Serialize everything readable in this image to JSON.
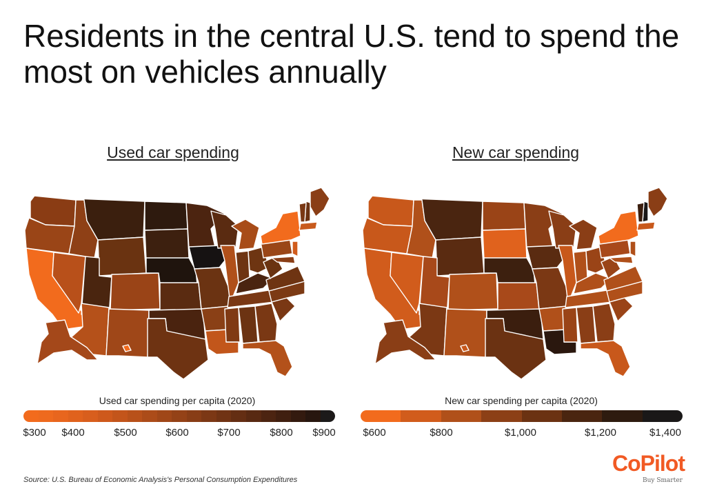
{
  "title": "Residents in the central U.S. tend to spend the most on vehicles annually",
  "maps": {
    "used": {
      "title": "Used car spending",
      "legend_title": "Used car spending per capita (2020)",
      "ticks": [
        "$300",
        "$400",
        "$500",
        "$600",
        "$700",
        "$800",
        "$900"
      ],
      "scale_colors": [
        "#f26b1d",
        "#ee6a1e",
        "#e8661e",
        "#e0621d",
        "#d85e1d",
        "#ce591c",
        "#c3551b",
        "#b8511a",
        "#ac4c19",
        "#a04718",
        "#944217",
        "#883d16",
        "#7c3815",
        "#703314",
        "#642e13",
        "#582912",
        "#4c2411",
        "#401f10",
        "#331a0f",
        "#27160f",
        "#1c1a1a"
      ],
      "states": {
        "WA": "#8a3c14",
        "OR": "#9a4517",
        "CA": "#f26b1d",
        "NV": "#b8501a",
        "ID": "#8e4016",
        "MT": "#3b1f0e",
        "WY": "#6a3311",
        "UT": "#4a250f",
        "AZ": "#b5511a",
        "CO": "#9a4417",
        "NM": "#9f4718",
        "ND": "#2e1a0e",
        "SD": "#3d200f",
        "NE": "#1f140d",
        "KS": "#5a2b11",
        "OK": "#4a230f",
        "TX": "#6e3312",
        "MN": "#4c2410",
        "IA": "#161212",
        "MO": "#6b3312",
        "AR": "#8a4016",
        "LA": "#c2561b",
        "WI": "#5a2b11",
        "IL": "#b0501a",
        "MI": "#a84c18",
        "IN": "#6e3412",
        "OH": "#6e3512",
        "KY": "#4a2410",
        "TN": "#7a3814",
        "MS": "#803a14",
        "AL": "#6c3312",
        "GA": "#7a3814",
        "FL": "#b3511a",
        "SC": "#7a3814",
        "NC": "#7c3a14",
        "VA": "#6e3412",
        "WV": "#6a3311",
        "PA": "#9a4617",
        "NY": "#f26b1d",
        "ME": "#8a3e16",
        "NH": "#6b3212",
        "VT": "#7a3814",
        "MA": "#c85a1c",
        "NJ": "#d15c1c",
        "MD": "#8a3e16",
        "AK": "#a4481a",
        "HI": "#f26b1d"
      }
    },
    "new": {
      "title": "New car spending",
      "legend_title": "New car spending per capita (2020)",
      "ticks": [
        "$600",
        "$800",
        "$1,000",
        "$1,200",
        "$1,400"
      ],
      "scale_colors": [
        "#f26b1d",
        "#d15c1c",
        "#b0501a",
        "#8c4016",
        "#6b3212",
        "#4a2510",
        "#2e1b0f",
        "#1a1818"
      ],
      "states": {
        "WA": "#c8581b",
        "OR": "#c8581b",
        "CA": "#d15c1c",
        "NV": "#d15c1c",
        "ID": "#b0501a",
        "MT": "#4a2510",
        "WY": "#5a2b11",
        "UT": "#a8491a",
        "AZ": "#7b3814",
        "CO": "#b0501a",
        "NM": "#b0501a",
        "ND": "#9a4417",
        "SD": "#e0621d",
        "NE": "#3d200f",
        "KS": "#a8491a",
        "OK": "#3b1e0e",
        "TX": "#6b3212",
        "MN": "#8a3e16",
        "IA": "#5a2b11",
        "MO": "#7b3814",
        "AR": "#b0501a",
        "LA": "#2a170e",
        "WI": "#8a3e16",
        "IL": "#c8581b",
        "MI": "#8a3e16",
        "IN": "#b0501a",
        "OH": "#9a4417",
        "KY": "#b0501a",
        "TN": "#b0501a",
        "MS": "#9a4417",
        "AL": "#8a3e16",
        "GA": "#8a3e16",
        "FL": "#c8581b",
        "SC": "#9a4417",
        "NC": "#b0501a",
        "VA": "#b0501a",
        "WV": "#9a4417",
        "PA": "#a8491a",
        "NY": "#f26b1d",
        "ME": "#8a3e16",
        "NH": "#1a1818",
        "VT": "#3b1e0e",
        "MA": "#c8581b",
        "NJ": "#b0501a",
        "MD": "#b0501a",
        "AK": "#8a3e16",
        "HI": "#c8581b"
      }
    }
  },
  "source": "Source:  U.S. Bureau of Economic Analysis's Personal Consumption Expenditures",
  "logo": {
    "main": "CoPilot",
    "sub": "Buy Smarter"
  }
}
